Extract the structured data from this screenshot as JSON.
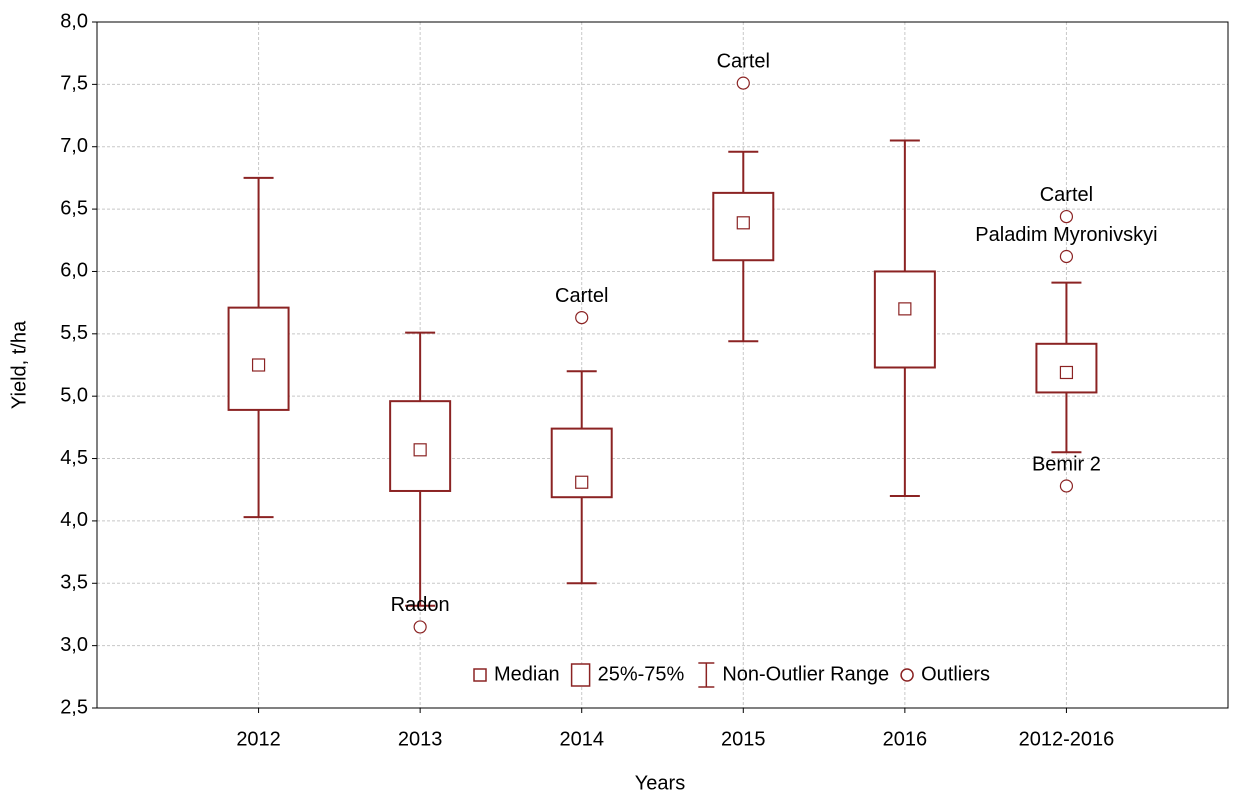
{
  "chart_data": {
    "type": "box",
    "xlabel": "Years",
    "ylabel": "Yield, t/ha",
    "categories": [
      "2012",
      "2013",
      "2014",
      "2015",
      "2016",
      "2012-2016"
    ],
    "boxes": [
      {
        "min": 4.03,
        "q1": 4.89,
        "median": 5.25,
        "q3": 5.71,
        "max": 6.75,
        "outliers": []
      },
      {
        "min": 3.32,
        "q1": 4.24,
        "median": 4.57,
        "q3": 4.96,
        "max": 5.51,
        "outliers": [
          {
            "value": 3.15,
            "label": "Radon"
          }
        ]
      },
      {
        "min": 3.5,
        "q1": 4.19,
        "median": 4.31,
        "q3": 4.74,
        "max": 5.2,
        "outliers": [
          {
            "value": 5.63,
            "label": "Cartel"
          }
        ]
      },
      {
        "min": 5.44,
        "q1": 6.09,
        "median": 6.39,
        "q3": 6.63,
        "max": 6.96,
        "outliers": [
          {
            "value": 7.51,
            "label": "Cartel"
          }
        ]
      },
      {
        "min": 4.2,
        "q1": 5.23,
        "median": 5.7,
        "q3": 6.0,
        "max": 7.05,
        "outliers": []
      },
      {
        "min": 4.55,
        "q1": 5.03,
        "median": 5.19,
        "q3": 5.42,
        "max": 5.91,
        "outliers": [
          {
            "value": 6.44,
            "label": "Cartel"
          },
          {
            "value": 6.12,
            "label": "Paladim Myronivskyi"
          },
          {
            "value": 4.28,
            "label": "Bemir 2"
          }
        ]
      }
    ],
    "color": "#8b2323",
    "legend": [
      "Median",
      "25%-75%",
      "Non-Outlier Range",
      "Outliers"
    ],
    "legend_position": "bottom",
    "ylim": [
      2.5,
      8.0
    ],
    "yticks": [
      {
        "value": 2.5,
        "label": "2,5"
      },
      {
        "value": 3.0,
        "label": "3,0"
      },
      {
        "value": 3.5,
        "label": "3,5"
      },
      {
        "value": 4.0,
        "label": "4,0"
      },
      {
        "value": 4.5,
        "label": "4,5"
      },
      {
        "value": 5.0,
        "label": "5,0"
      },
      {
        "value": 5.5,
        "label": "5,5"
      },
      {
        "value": 6.0,
        "label": "6,0"
      },
      {
        "value": 6.5,
        "label": "6,5"
      },
      {
        "value": 7.0,
        "label": "7,0"
      },
      {
        "value": 7.5,
        "label": "7,5"
      },
      {
        "value": 8.0,
        "label": "8,0"
      }
    ],
    "grid": true
  }
}
